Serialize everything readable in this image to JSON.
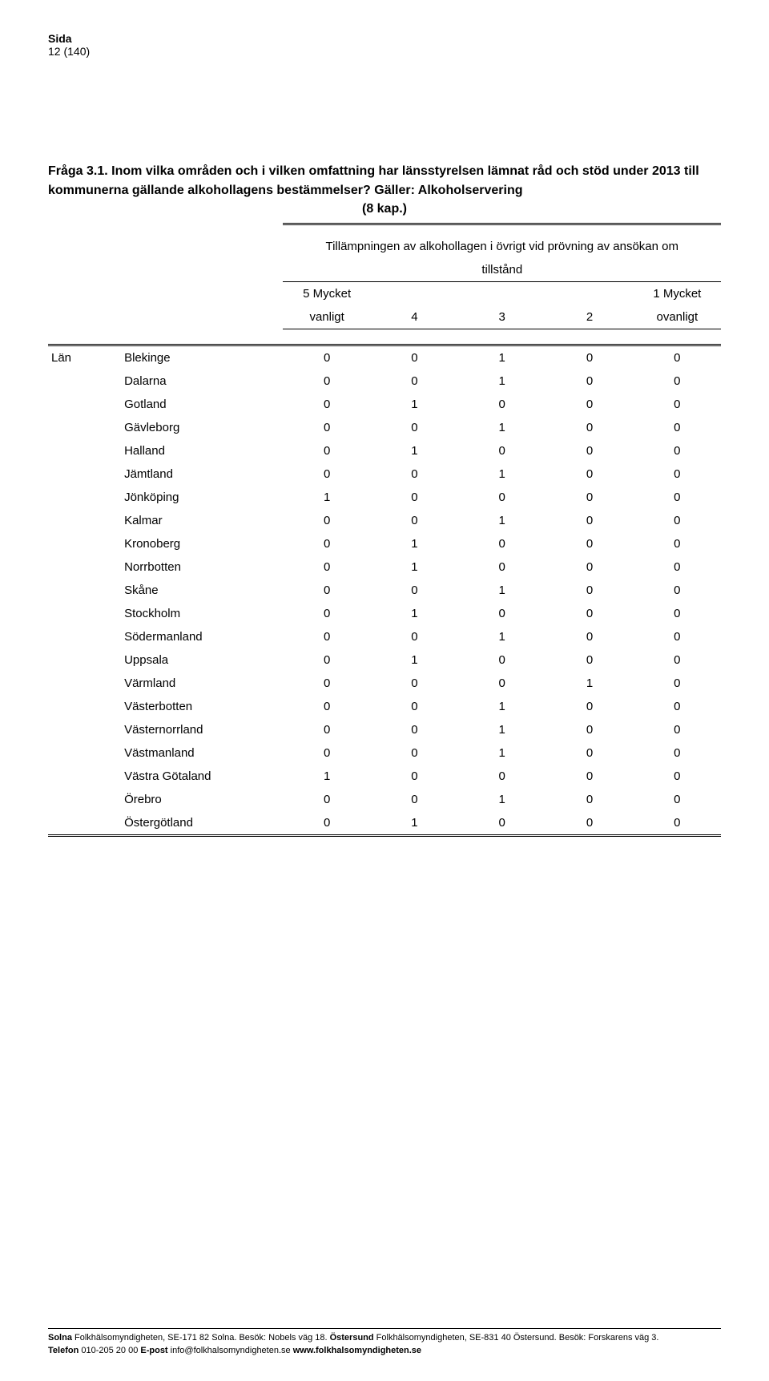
{
  "header": {
    "label": "Sida",
    "page_num": "12 (140)"
  },
  "question": {
    "prefix": "Fråga 3.1.",
    "text": "Inom vilka områden och i vilken omfattning har länsstyrelsen lämnat råd och stöd under 2013 till kommunerna gällande alkohollagens bestämmelser? Gäller: Alkoholservering",
    "subtext": "(8 kap.)"
  },
  "table": {
    "super_header_line1": "Tillämpningen av alkohollagen i övrigt vid prövning av ansökan om",
    "super_header_line2": "tillstånd",
    "col_headers": {
      "c1_top": "5 Mycket",
      "c1_bot": "vanligt",
      "c2": "4",
      "c3": "3",
      "c4": "2",
      "c5_top": "1 Mycket",
      "c5_bot": "ovanligt"
    },
    "group_label": "Län",
    "rows": [
      {
        "name": "Blekinge",
        "v": [
          "0",
          "0",
          "1",
          "0",
          "0"
        ]
      },
      {
        "name": "Dalarna",
        "v": [
          "0",
          "0",
          "1",
          "0",
          "0"
        ]
      },
      {
        "name": "Gotland",
        "v": [
          "0",
          "1",
          "0",
          "0",
          "0"
        ]
      },
      {
        "name": "Gävleborg",
        "v": [
          "0",
          "0",
          "1",
          "0",
          "0"
        ]
      },
      {
        "name": "Halland",
        "v": [
          "0",
          "1",
          "0",
          "0",
          "0"
        ]
      },
      {
        "name": "Jämtland",
        "v": [
          "0",
          "0",
          "1",
          "0",
          "0"
        ]
      },
      {
        "name": "Jönköping",
        "v": [
          "1",
          "0",
          "0",
          "0",
          "0"
        ]
      },
      {
        "name": "Kalmar",
        "v": [
          "0",
          "0",
          "1",
          "0",
          "0"
        ]
      },
      {
        "name": "Kronoberg",
        "v": [
          "0",
          "1",
          "0",
          "0",
          "0"
        ]
      },
      {
        "name": "Norrbotten",
        "v": [
          "0",
          "1",
          "0",
          "0",
          "0"
        ]
      },
      {
        "name": "Skåne",
        "v": [
          "0",
          "0",
          "1",
          "0",
          "0"
        ]
      },
      {
        "name": "Stockholm",
        "v": [
          "0",
          "1",
          "0",
          "0",
          "0"
        ]
      },
      {
        "name": "Södermanland",
        "v": [
          "0",
          "0",
          "1",
          "0",
          "0"
        ]
      },
      {
        "name": "Uppsala",
        "v": [
          "0",
          "1",
          "0",
          "0",
          "0"
        ]
      },
      {
        "name": "Värmland",
        "v": [
          "0",
          "0",
          "0",
          "1",
          "0"
        ]
      },
      {
        "name": "Västerbotten",
        "v": [
          "0",
          "0",
          "1",
          "0",
          "0"
        ]
      },
      {
        "name": "Västernorrland",
        "v": [
          "0",
          "0",
          "1",
          "0",
          "0"
        ]
      },
      {
        "name": "Västmanland",
        "v": [
          "0",
          "0",
          "1",
          "0",
          "0"
        ]
      },
      {
        "name": "Västra Götaland",
        "v": [
          "1",
          "0",
          "0",
          "0",
          "0"
        ]
      },
      {
        "name": "Örebro",
        "v": [
          "0",
          "0",
          "1",
          "0",
          "0"
        ]
      },
      {
        "name": "Östergötland",
        "v": [
          "0",
          "1",
          "0",
          "0",
          "0"
        ]
      }
    ]
  },
  "footer": {
    "line1_b1": "Solna",
    "line1_t1": " Folkhälsomyndigheten, SE-171 82 Solna. Besök: Nobels väg 18. ",
    "line1_b2": "Östersund",
    "line1_t2": " Folkhälsomyndigheten, SE-831 40 Östersund. Besök: Forskarens väg 3.",
    "line2_b1": "Telefon",
    "line2_t1": " 010-205 20 00 ",
    "line2_b2": "E-post",
    "line2_t2": " info@folkhalsomyndigheten.se ",
    "line2_b3": "www.folkhalsomyndigheten.se"
  }
}
